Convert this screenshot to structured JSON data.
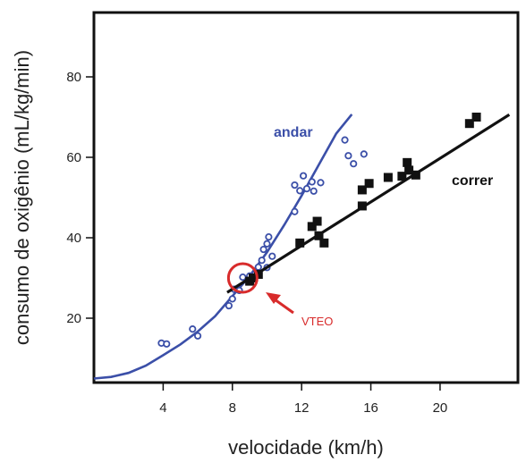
{
  "chart_data": {
    "type": "scatter",
    "title": "",
    "xlabel": "velocidade (km/h)",
    "ylabel": "consumo de oxigênio (mL/kg/min)",
    "xlim": [
      0,
      24.5
    ],
    "ylim": [
      4,
      96
    ],
    "x_ticks": [
      4,
      8,
      12,
      16,
      20
    ],
    "y_ticks": [
      20,
      40,
      60,
      80
    ],
    "grid": false,
    "legend": "none",
    "series": [
      {
        "name": "andar",
        "marker": "open-circle",
        "color": "#3b4fa8",
        "points": [
          [
            3.9,
            13.8
          ],
          [
            4.2,
            13.6
          ],
          [
            5.7,
            17.3
          ],
          [
            6.0,
            15.6
          ],
          [
            7.8,
            23.1
          ],
          [
            8.0,
            24.8
          ],
          [
            8.1,
            27.2
          ],
          [
            8.4,
            26.9
          ],
          [
            8.6,
            30.2
          ],
          [
            9.0,
            30.5
          ],
          [
            9.5,
            32.7
          ],
          [
            9.7,
            34.4
          ],
          [
            9.8,
            37.1
          ],
          [
            10.0,
            38.5
          ],
          [
            10.1,
            40.2
          ],
          [
            10.3,
            35.4
          ],
          [
            10.0,
            32.6
          ],
          [
            11.6,
            46.5
          ],
          [
            11.6,
            53.1
          ],
          [
            11.9,
            51.7
          ],
          [
            12.1,
            55.4
          ],
          [
            12.3,
            52.2
          ],
          [
            12.6,
            53.9
          ],
          [
            12.7,
            51.6
          ],
          [
            13.1,
            53.7
          ],
          [
            14.5,
            64.3
          ],
          [
            14.7,
            60.4
          ],
          [
            15.0,
            58.4
          ],
          [
            15.6,
            60.8
          ]
        ],
        "curve": [
          [
            0,
            5.0
          ],
          [
            1,
            5.4
          ],
          [
            2,
            6.4
          ],
          [
            3,
            8.2
          ],
          [
            4,
            10.8
          ],
          [
            5,
            13.5
          ],
          [
            6,
            16.7
          ],
          [
            7,
            20.5
          ],
          [
            8,
            25.5
          ],
          [
            9,
            30.5
          ],
          [
            10,
            36.4
          ],
          [
            11,
            43.2
          ],
          [
            12,
            50.5
          ],
          [
            13,
            58.2
          ],
          [
            14,
            65.9
          ],
          [
            14.9,
            70.7
          ]
        ]
      },
      {
        "name": "correr",
        "marker": "filled-square",
        "color": "#111111",
        "points": [
          [
            9.0,
            29.2
          ],
          [
            9.2,
            30.0
          ],
          [
            9.5,
            30.9
          ],
          [
            11.9,
            38.7
          ],
          [
            12.6,
            42.8
          ],
          [
            12.9,
            44.1
          ],
          [
            13.0,
            40.5
          ],
          [
            13.3,
            38.7
          ],
          [
            15.5,
            47.9
          ],
          [
            15.5,
            51.9
          ],
          [
            15.9,
            53.5
          ],
          [
            17.0,
            55.0
          ],
          [
            17.8,
            55.3
          ],
          [
            18.1,
            58.7
          ],
          [
            18.2,
            56.8
          ],
          [
            18.6,
            55.6
          ],
          [
            21.7,
            68.4
          ],
          [
            22.1,
            70.0
          ]
        ],
        "line": [
          [
            7.7,
            26.4
          ],
          [
            24.0,
            70.6
          ]
        ]
      }
    ],
    "annotations": [
      {
        "text": "VTEO",
        "x": 8.6,
        "y": 30.0,
        "color": "#d82b2b"
      }
    ]
  }
}
